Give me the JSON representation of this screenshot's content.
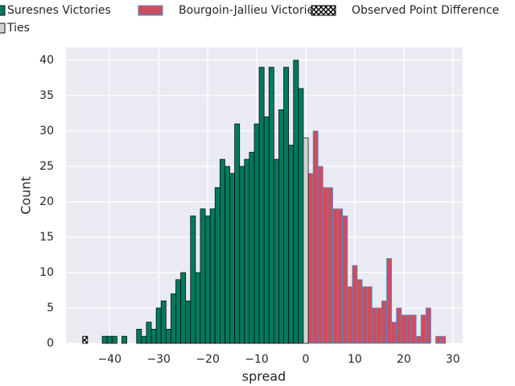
{
  "chart_data": {
    "type": "histogram",
    "xlabel": "spread",
    "ylabel": "Count",
    "xlim": [
      -48.9,
      32
    ],
    "ylim": [
      0,
      41.8
    ],
    "xticks": [
      {
        "value": -40,
        "label": "−40"
      },
      {
        "value": -30,
        "label": "−30"
      },
      {
        "value": -20,
        "label": "−20"
      },
      {
        "value": -10,
        "label": "−10"
      },
      0,
      10,
      20,
      30
    ],
    "yticks": [
      0,
      5,
      10,
      15,
      20,
      25,
      30,
      35,
      40
    ],
    "grid": true,
    "series": [
      {
        "name": "Suresnes Victories",
        "color": "#007a5e",
        "edgecolor": "#111111",
        "bins": [
          -41.5,
          -40.5,
          -39.5,
          -38.5,
          -37.5,
          -36.5,
          -35.5,
          -34.5,
          -33.5,
          -32.5,
          -31.5,
          -30.5,
          -29.5,
          -28.5,
          -27.5,
          -26.5,
          -25.5,
          -24.5,
          -23.5,
          -22.5,
          -21.5,
          -20.5,
          -19.5,
          -18.5,
          -17.5,
          -16.5,
          -15.5,
          -14.5,
          -13.5,
          -12.5,
          -11.5,
          -10.5,
          -9.5,
          -8.5,
          -7.5,
          -6.5,
          -5.5,
          -4.5,
          -3.5,
          -2.5,
          -1.5,
          -0.5
        ],
        "values": [
          1,
          1,
          1,
          0,
          1,
          0,
          0,
          2,
          1,
          3,
          2,
          5,
          6,
          2,
          7,
          9,
          10,
          6,
          18,
          10,
          19,
          18,
          19,
          22,
          26,
          25,
          24,
          31,
          25,
          26,
          27,
          31,
          39,
          32,
          39,
          26,
          33,
          39,
          28,
          40,
          36
        ]
      },
      {
        "name": "Bourgoin-Jallieu Victories",
        "color": "#cc4e5c",
        "edgecolor": "#4c8fd0",
        "bins": [
          0.5,
          1.5,
          2.5,
          3.5,
          4.5,
          5.5,
          6.5,
          7.5,
          8.5,
          9.5,
          10.5,
          11.5,
          12.5,
          13.5,
          14.5,
          15.5,
          16.5,
          17.5,
          18.5,
          19.5,
          20.5,
          21.5,
          22.5,
          23.5,
          24.5,
          25.5,
          26.5,
          27.5,
          28.5
        ],
        "values": [
          24,
          30,
          25,
          22,
          22,
          19,
          19,
          18,
          8,
          11,
          9,
          8,
          8,
          5,
          5,
          6,
          12,
          3,
          5,
          4,
          4,
          4,
          1,
          4,
          5,
          0,
          1,
          1
        ]
      },
      {
        "name": "Observed Point Difference",
        "color": "#000000",
        "edgecolor": "#000000",
        "hatch": true,
        "bins": [
          -45.5,
          -44.5
        ],
        "values": [
          1
        ]
      },
      {
        "name": "Ties",
        "color": "#d3d3d3",
        "edgecolor": "#111111",
        "bins": [
          -0.5,
          0.5
        ],
        "values": [
          29
        ]
      }
    ]
  }
}
